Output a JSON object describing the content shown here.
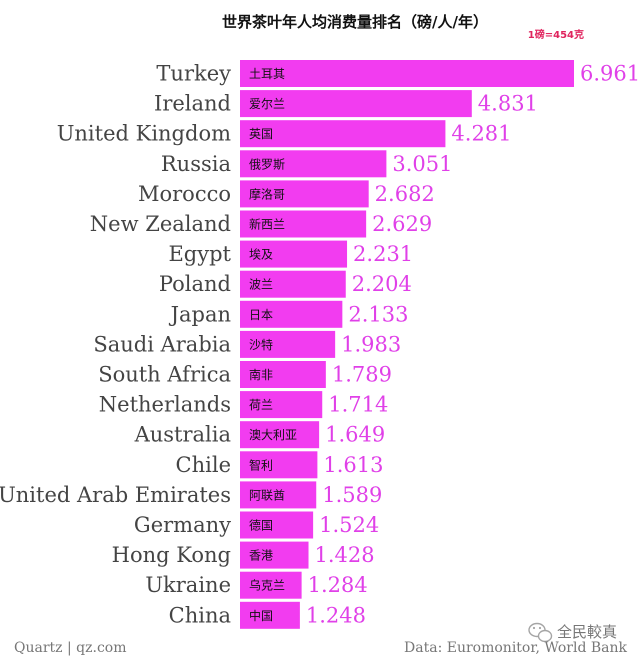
{
  "header": {
    "title": "世界茶叶年人均消费量排名（磅/人/年）",
    "unit_note": "1磅=454克"
  },
  "footer": {
    "source_left": "Quartz | qz.com",
    "source_right": "Data: Euromonitor, World Bank",
    "watermark": "全民較真"
  },
  "colors": {
    "bar": "#f23cf0",
    "value_text": "#e040e8",
    "note_text": "#e0245e"
  },
  "chart_data": {
    "type": "bar",
    "orientation": "horizontal",
    "title": "世界茶叶年人均消费量排名（磅/人/年）",
    "categories": [
      "Turkey",
      "Ireland",
      "United Kingdom",
      "Russia",
      "Morocco",
      "New Zealand",
      "Egypt",
      "Poland",
      "Japan",
      "Saudi Arabia",
      "South Africa",
      "Netherlands",
      "Australia",
      "Chile",
      "United Arab Emirates",
      "Germany",
      "Hong Kong",
      "Ukraine",
      "China"
    ],
    "categories_cn": [
      "土耳其",
      "爱尔兰",
      "英国",
      "俄罗斯",
      "摩洛哥",
      "新西兰",
      "埃及",
      "波兰",
      "日本",
      "沙特",
      "南非",
      "荷兰",
      "澳大利亚",
      "智利",
      "阿联酋",
      "德国",
      "香港",
      "乌克兰",
      "中国"
    ],
    "values": [
      6.961,
      4.831,
      4.281,
      3.051,
      2.682,
      2.629,
      2.231,
      2.204,
      2.133,
      1.983,
      1.789,
      1.714,
      1.649,
      1.613,
      1.589,
      1.524,
      1.428,
      1.284,
      1.248
    ],
    "value_labels": [
      "6.961",
      "4.831",
      "4.281",
      "3.051",
      "2.682",
      "2.629",
      "2.231",
      "2.204",
      "2.133",
      "1.983",
      "1.789",
      "1.714",
      "1.649",
      "1.613",
      "1.589",
      "1.524",
      "1.428",
      "1.284",
      "1.248"
    ],
    "xlim": [
      0,
      6.961
    ],
    "grid": false,
    "legend": "none"
  }
}
